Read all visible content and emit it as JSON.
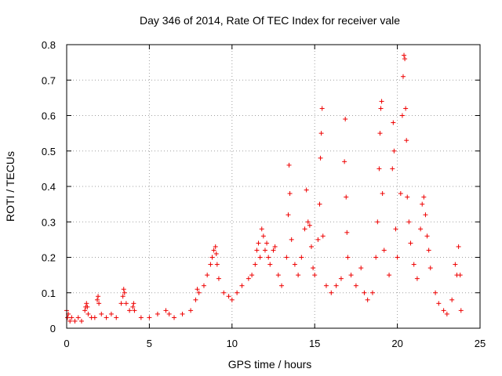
{
  "chart_data": {
    "type": "scatter",
    "title": "Day 346 of 2014, Rate Of TEC Index for receiver vale",
    "xlabel": "GPS time / hours",
    "ylabel": "ROTI / TECUs",
    "xlim": [
      0,
      25
    ],
    "ylim": [
      0,
      0.8
    ],
    "xticks": [
      0,
      5,
      10,
      15,
      20,
      25
    ],
    "yticks": [
      0,
      0.1,
      0.2,
      0.3,
      0.4,
      0.5,
      0.6,
      0.7,
      0.8
    ],
    "xtick_labels": [
      "0",
      "5",
      "10",
      "15",
      "20",
      "25"
    ],
    "ytick_labels": [
      "0",
      "0.1",
      "0.2",
      "0.3",
      "0.4",
      "0.5",
      "0.6",
      "0.7",
      "0.8"
    ],
    "grid": true,
    "marker": "+",
    "color": "#ee0000",
    "series": [
      {
        "name": "ROTI",
        "points": [
          [
            0.0,
            0.05
          ],
          [
            0.05,
            0.03
          ],
          [
            0.1,
            0.04
          ],
          [
            0.2,
            0.02
          ],
          [
            0.3,
            0.03
          ],
          [
            0.5,
            0.02
          ],
          [
            0.7,
            0.03
          ],
          [
            0.9,
            0.02
          ],
          [
            1.1,
            0.05
          ],
          [
            1.15,
            0.06
          ],
          [
            1.2,
            0.07
          ],
          [
            1.25,
            0.06
          ],
          [
            1.3,
            0.04
          ],
          [
            1.5,
            0.03
          ],
          [
            1.7,
            0.03
          ],
          [
            1.85,
            0.08
          ],
          [
            1.9,
            0.09
          ],
          [
            1.95,
            0.07
          ],
          [
            2.1,
            0.04
          ],
          [
            2.4,
            0.03
          ],
          [
            2.7,
            0.04
          ],
          [
            3.0,
            0.03
          ],
          [
            3.3,
            0.07
          ],
          [
            3.4,
            0.09
          ],
          [
            3.45,
            0.11
          ],
          [
            3.5,
            0.1
          ],
          [
            3.6,
            0.07
          ],
          [
            3.8,
            0.05
          ],
          [
            4.0,
            0.06
          ],
          [
            4.05,
            0.07
          ],
          [
            4.1,
            0.05
          ],
          [
            4.5,
            0.03
          ],
          [
            5.0,
            0.03
          ],
          [
            5.5,
            0.04
          ],
          [
            6.0,
            0.05
          ],
          [
            6.2,
            0.04
          ],
          [
            6.5,
            0.03
          ],
          [
            7.0,
            0.04
          ],
          [
            7.5,
            0.05
          ],
          [
            7.8,
            0.08
          ],
          [
            7.9,
            0.11
          ],
          [
            8.0,
            0.1
          ],
          [
            8.3,
            0.12
          ],
          [
            8.5,
            0.15
          ],
          [
            8.7,
            0.18
          ],
          [
            8.8,
            0.2
          ],
          [
            8.9,
            0.22
          ],
          [
            9.0,
            0.23
          ],
          [
            9.05,
            0.21
          ],
          [
            9.1,
            0.18
          ],
          [
            9.2,
            0.14
          ],
          [
            9.5,
            0.1
          ],
          [
            9.8,
            0.09
          ],
          [
            10.0,
            0.08
          ],
          [
            10.3,
            0.1
          ],
          [
            10.6,
            0.12
          ],
          [
            11.0,
            0.14
          ],
          [
            11.2,
            0.15
          ],
          [
            11.4,
            0.18
          ],
          [
            11.5,
            0.22
          ],
          [
            11.6,
            0.24
          ],
          [
            11.7,
            0.2
          ],
          [
            11.8,
            0.28
          ],
          [
            11.9,
            0.26
          ],
          [
            12.0,
            0.22
          ],
          [
            12.1,
            0.24
          ],
          [
            12.2,
            0.2
          ],
          [
            12.3,
            0.18
          ],
          [
            12.5,
            0.22
          ],
          [
            12.6,
            0.23
          ],
          [
            12.8,
            0.15
          ],
          [
            13.0,
            0.12
          ],
          [
            13.3,
            0.2
          ],
          [
            13.4,
            0.32
          ],
          [
            13.45,
            0.46
          ],
          [
            13.5,
            0.38
          ],
          [
            13.6,
            0.25
          ],
          [
            13.8,
            0.18
          ],
          [
            14.0,
            0.15
          ],
          [
            14.2,
            0.2
          ],
          [
            14.4,
            0.28
          ],
          [
            14.5,
            0.39
          ],
          [
            14.6,
            0.3
          ],
          [
            14.7,
            0.29
          ],
          [
            14.8,
            0.23
          ],
          [
            14.9,
            0.17
          ],
          [
            15.0,
            0.15
          ],
          [
            15.2,
            0.25
          ],
          [
            15.3,
            0.35
          ],
          [
            15.35,
            0.48
          ],
          [
            15.4,
            0.55
          ],
          [
            15.45,
            0.62
          ],
          [
            15.5,
            0.26
          ],
          [
            15.7,
            0.12
          ],
          [
            16.0,
            0.1
          ],
          [
            16.3,
            0.12
          ],
          [
            16.6,
            0.14
          ],
          [
            16.8,
            0.47
          ],
          [
            16.85,
            0.59
          ],
          [
            16.9,
            0.37
          ],
          [
            16.95,
            0.27
          ],
          [
            17.0,
            0.2
          ],
          [
            17.2,
            0.15
          ],
          [
            17.5,
            0.12
          ],
          [
            17.8,
            0.17
          ],
          [
            18.0,
            0.1
          ],
          [
            18.2,
            0.08
          ],
          [
            18.5,
            0.1
          ],
          [
            18.7,
            0.2
          ],
          [
            18.8,
            0.3
          ],
          [
            18.9,
            0.45
          ],
          [
            18.95,
            0.55
          ],
          [
            19.0,
            0.62
          ],
          [
            19.05,
            0.64
          ],
          [
            19.1,
            0.38
          ],
          [
            19.2,
            0.22
          ],
          [
            19.5,
            0.15
          ],
          [
            19.7,
            0.45
          ],
          [
            19.75,
            0.58
          ],
          [
            19.8,
            0.5
          ],
          [
            19.9,
            0.28
          ],
          [
            20.0,
            0.2
          ],
          [
            20.2,
            0.38
          ],
          [
            20.3,
            0.6
          ],
          [
            20.35,
            0.71
          ],
          [
            20.4,
            0.77
          ],
          [
            20.45,
            0.76
          ],
          [
            20.5,
            0.62
          ],
          [
            20.55,
            0.53
          ],
          [
            20.6,
            0.37
          ],
          [
            20.7,
            0.3
          ],
          [
            20.8,
            0.24
          ],
          [
            21.0,
            0.18
          ],
          [
            21.2,
            0.14
          ],
          [
            21.4,
            0.28
          ],
          [
            21.5,
            0.35
          ],
          [
            21.6,
            0.37
          ],
          [
            21.7,
            0.32
          ],
          [
            21.8,
            0.26
          ],
          [
            21.9,
            0.22
          ],
          [
            22.0,
            0.17
          ],
          [
            22.3,
            0.1
          ],
          [
            22.5,
            0.07
          ],
          [
            22.8,
            0.05
          ],
          [
            23.0,
            0.04
          ],
          [
            23.3,
            0.08
          ],
          [
            23.5,
            0.18
          ],
          [
            23.6,
            0.15
          ],
          [
            23.7,
            0.23
          ],
          [
            23.8,
            0.15
          ],
          [
            23.85,
            0.05
          ]
        ]
      }
    ]
  }
}
